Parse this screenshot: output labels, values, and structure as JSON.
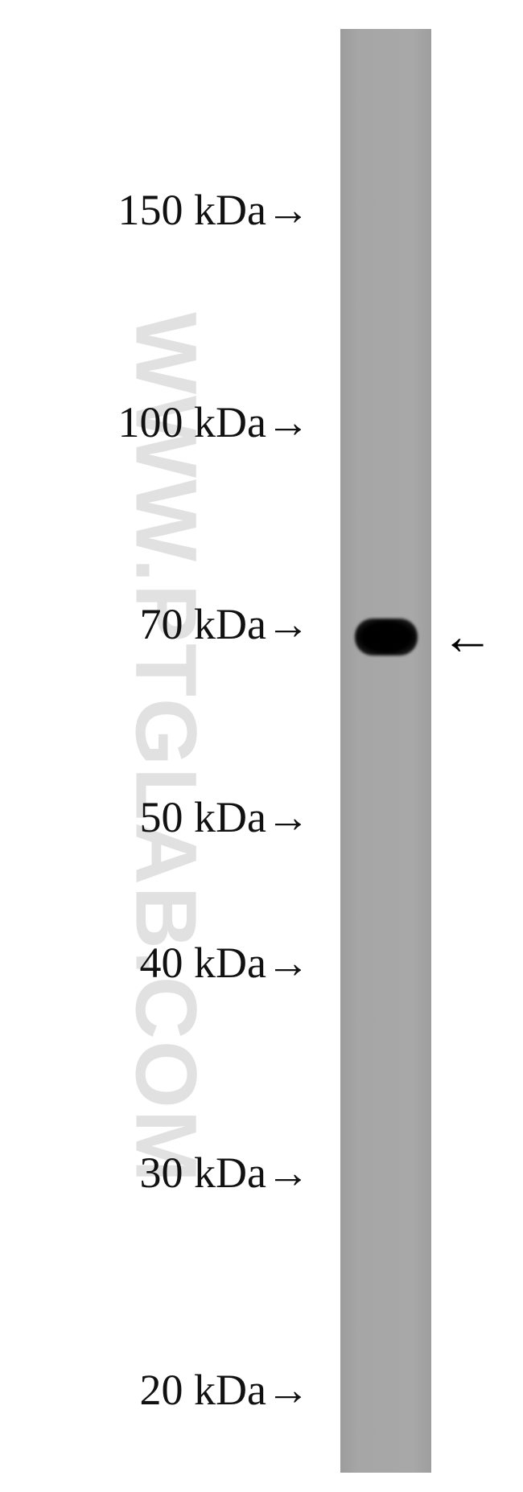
{
  "markers": [
    "150 kDa→",
    "100 kDa→",
    "70 kDa→",
    "50 kDa→",
    "40 kDa→",
    "30 kDa→",
    "20 kDa→"
  ],
  "band_arrow": "←",
  "watermark": "WWW.PTGLAB.COM"
}
